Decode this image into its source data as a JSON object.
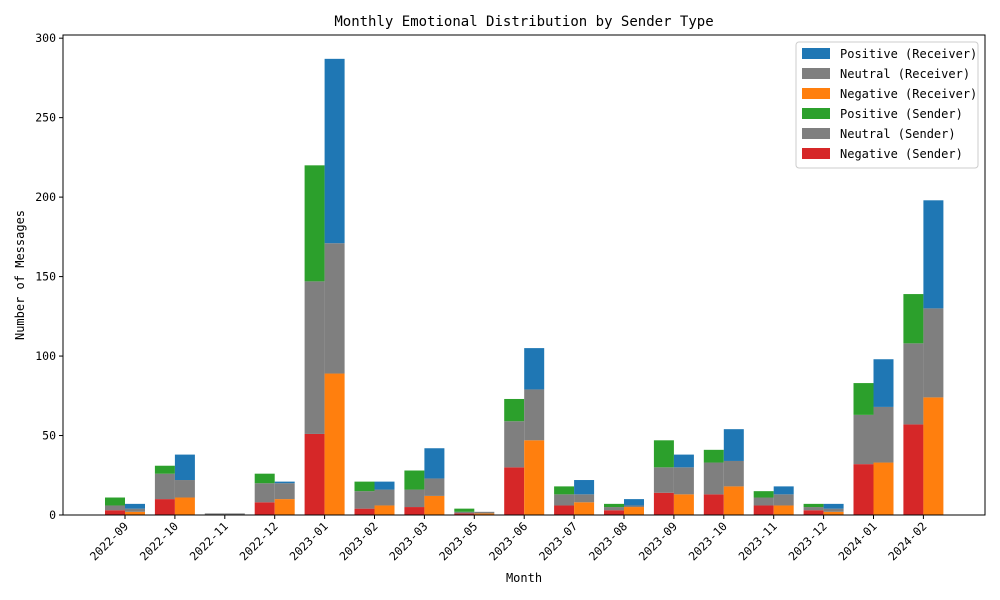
{
  "chart_data": {
    "type": "bar",
    "title": "Monthly Emotional Distribution by Sender Type",
    "xlabel": "Month",
    "ylabel": "Number of Messages",
    "ylim": [
      0,
      302
    ],
    "yticks": [
      0,
      50,
      100,
      150,
      200,
      250,
      300
    ],
    "legend_position": "top-right",
    "grid": false,
    "categories": [
      "2022-09",
      "2022-10",
      "2022-11",
      "2022-12",
      "2023-01",
      "2023-02",
      "2023-03",
      "2023-05",
      "2023-06",
      "2023-07",
      "2023-08",
      "2023-09",
      "2023-10",
      "2023-11",
      "2023-12",
      "2024-01",
      "2024-02"
    ],
    "series": [
      {
        "name": "Negative (Sender)",
        "group": "sender",
        "color": "#d62728",
        "values": [
          3,
          10,
          0,
          8,
          51,
          4,
          5,
          1,
          30,
          6,
          3,
          14,
          13,
          6,
          3,
          32,
          57
        ]
      },
      {
        "name": "Neutral (Sender)",
        "group": "sender",
        "color": "#7f7f7f",
        "values": [
          3,
          16,
          1,
          12,
          96,
          11,
          11,
          1,
          29,
          7,
          2,
          16,
          20,
          5,
          2,
          31,
          51
        ]
      },
      {
        "name": "Positive (Sender)",
        "group": "sender",
        "color": "#2ca02c",
        "values": [
          5,
          5,
          0,
          6,
          73,
          6,
          12,
          2,
          14,
          5,
          2,
          17,
          8,
          4,
          2,
          20,
          31
        ]
      },
      {
        "name": "Negative (Receiver)",
        "group": "receiver",
        "color": "#ff7f0e",
        "values": [
          2,
          11,
          0,
          10,
          89,
          6,
          12,
          1,
          47,
          8,
          5,
          13,
          18,
          6,
          2,
          33,
          74
        ]
      },
      {
        "name": "Neutral (Receiver)",
        "group": "receiver",
        "color": "#7f7f7f",
        "values": [
          2,
          11,
          1,
          10,
          82,
          10,
          11,
          1,
          32,
          5,
          1,
          17,
          16,
          7,
          2,
          35,
          56
        ]
      },
      {
        "name": "Positive (Receiver)",
        "group": "receiver",
        "color": "#1f77b4",
        "values": [
          3,
          16,
          0,
          1,
          116,
          5,
          19,
          0,
          26,
          9,
          4,
          8,
          20,
          5,
          3,
          30,
          68
        ]
      }
    ],
    "legend_order": [
      "Positive (Receiver)",
      "Neutral (Receiver)",
      "Negative (Receiver)",
      "Positive (Sender)",
      "Neutral (Sender)",
      "Negative (Sender)"
    ]
  }
}
